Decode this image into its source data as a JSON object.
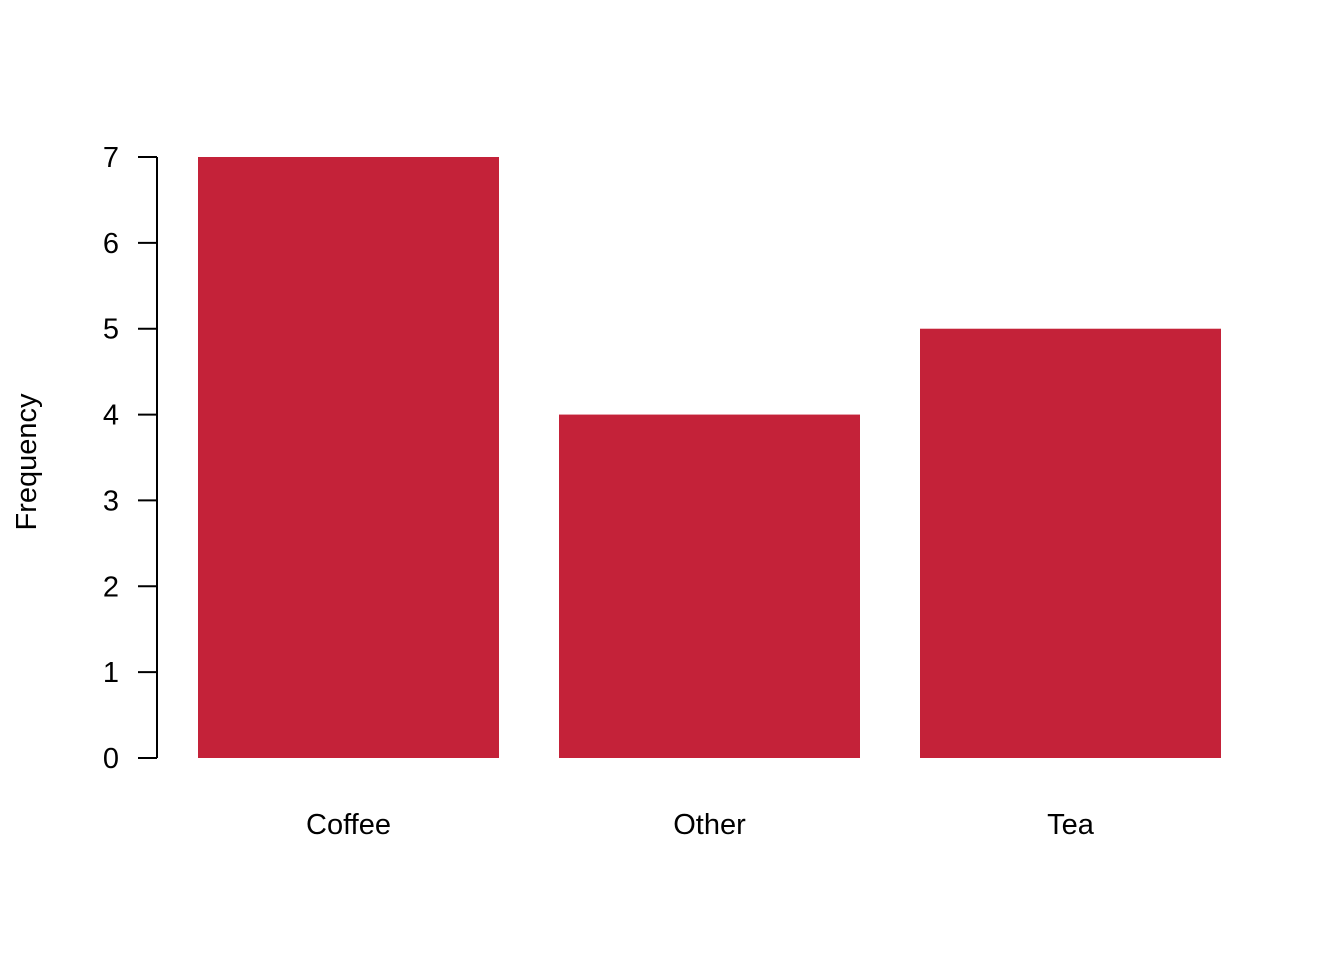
{
  "chart_data": {
    "type": "bar",
    "categories": [
      "Coffee",
      "Other",
      "Tea"
    ],
    "values": [
      7,
      4,
      5
    ],
    "title": "",
    "xlabel": "",
    "ylabel": "Frequency",
    "ylim": [
      0,
      7
    ],
    "yticks": [
      "0",
      "1",
      "2",
      "3",
      "4",
      "5",
      "6",
      "7"
    ],
    "grid": false,
    "legend": "none",
    "bar_color": "#C42239"
  }
}
